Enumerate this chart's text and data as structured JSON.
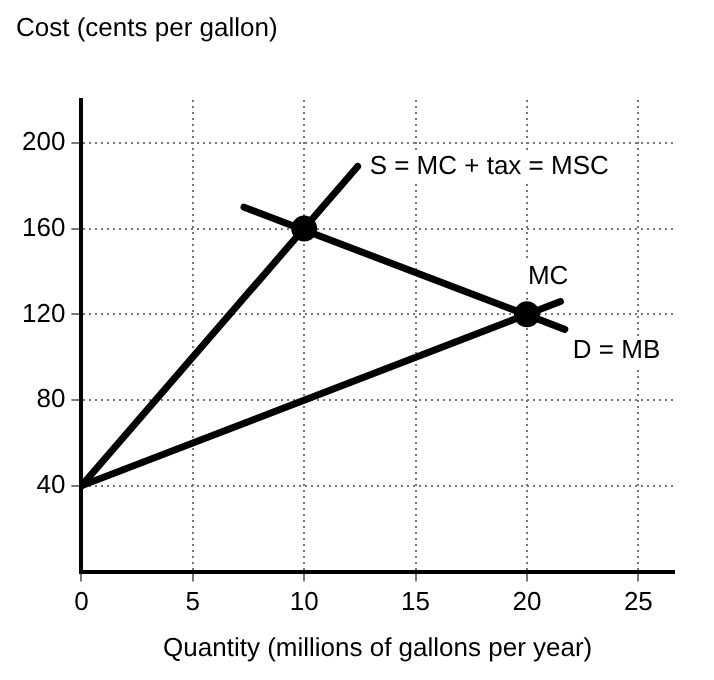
{
  "chart_data": {
    "type": "line",
    "xlabel": "Quantity (millions of gallons per year)",
    "ylabel": "Cost (cents per gallon)",
    "xlim": [
      0,
      26.6
    ],
    "ylim": [
      0,
      220
    ],
    "xticks": [
      0,
      5,
      10,
      15,
      20,
      25
    ],
    "yticks": [
      40,
      80,
      120,
      160,
      200
    ],
    "grid": true,
    "legend": false,
    "marker": "none",
    "line_style": "solid",
    "series": [
      {
        "name": "S = MC + tax = MSC",
        "color": "#000000",
        "x": [
          0,
          12.4
        ],
        "values": [
          40,
          189
        ]
      },
      {
        "name": "MC",
        "color": "#000000",
        "x": [
          0,
          21.5
        ],
        "values": [
          40,
          126
        ]
      },
      {
        "name": "D = MB",
        "color": "#000000",
        "x": [
          7.3,
          21.7
        ],
        "values": [
          170,
          113
        ]
      },
      {
        "type": "scatter",
        "marker": "circle",
        "color": "#000000",
        "x": [
          10,
          20
        ],
        "values": [
          160,
          120
        ]
      }
    ]
  }
}
